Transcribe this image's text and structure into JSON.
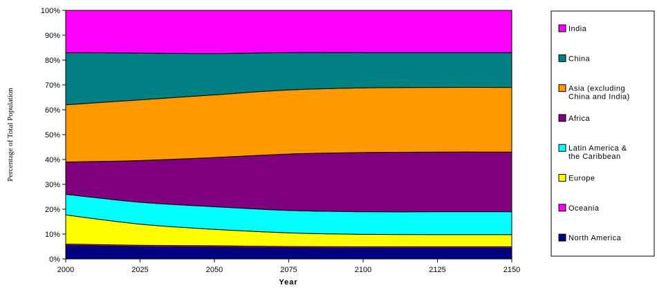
{
  "chart_data": {
    "type": "area",
    "stacked": true,
    "normalized": "percent",
    "xlabel": "Year",
    "ylabel": "Percentage of Total Population",
    "x": [
      2000,
      2025,
      2050,
      2075,
      2100,
      2125,
      2150
    ],
    "xlim": [
      2000,
      2150
    ],
    "ylim": [
      0,
      100
    ],
    "yticks": [
      "0%",
      "10%",
      "20%",
      "30%",
      "40%",
      "50%",
      "60%",
      "70%",
      "80%",
      "90%",
      "100%"
    ],
    "xticks": [
      "2000",
      "2025",
      "2050",
      "2075",
      "2100",
      "2125",
      "2150"
    ],
    "legend_position": "right",
    "series": [
      {
        "name": "North America",
        "color": "#000080",
        "values": [
          5.5,
          5.0,
          4.8,
          4.5,
          4.4,
          4.4,
          4.4
        ]
      },
      {
        "name": "Oceania",
        "color": "#FF00FF",
        "values": [
          0.5,
          0.5,
          0.5,
          0.5,
          0.5,
          0.5,
          0.5
        ]
      },
      {
        "name": "Europe",
        "color": "#FFFF00",
        "values": [
          11.7,
          8.5,
          6.6,
          5.5,
          5.0,
          4.9,
          4.9
        ]
      },
      {
        "name": "Latin America &\nthe Caribbean",
        "color": "#00FFFF",
        "values": [
          8.3,
          8.8,
          9.1,
          9.0,
          9.1,
          9.2,
          9.2
        ]
      },
      {
        "name": "Africa",
        "color": "#800080",
        "values": [
          13.0,
          16.8,
          19.8,
          22.7,
          23.8,
          24.0,
          24.0
        ]
      },
      {
        "name": "Asia (excluding\nChina and India)",
        "color": "#FF9900",
        "values": [
          23.0,
          24.4,
          25.2,
          25.8,
          26.0,
          26.0,
          26.0
        ]
      },
      {
        "name": "China",
        "color": "#008080",
        "values": [
          21.0,
          18.8,
          16.6,
          15.0,
          14.2,
          14.0,
          14.0
        ]
      },
      {
        "name": "India",
        "color": "#FF00FF",
        "values": [
          17.0,
          17.2,
          17.4,
          17.0,
          17.0,
          17.0,
          17.0
        ]
      }
    ]
  }
}
